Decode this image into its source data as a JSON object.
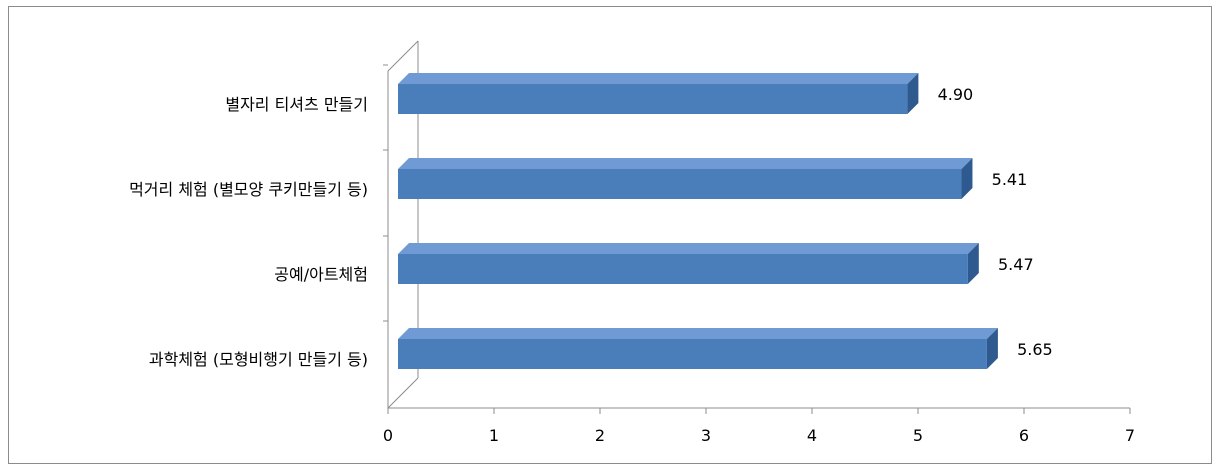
{
  "chart_data": {
    "type": "bar",
    "orientation": "horizontal",
    "style": "3d",
    "categories": [
      "별자리 티셔츠 만들기",
      "먹거리 체험 (별모양 쿠키만들기 등)",
      "공예/아트체험",
      "과학체험 (모형비행기 만들기 등)"
    ],
    "values": [
      4.9,
      5.41,
      5.47,
      5.65
    ],
    "value_labels": [
      "4.90",
      "5.41",
      "5.47",
      "5.65"
    ],
    "xlim": [
      0,
      7
    ],
    "x_ticks": [
      "0",
      "1",
      "2",
      "3",
      "4",
      "5",
      "6",
      "7"
    ],
    "grid": false,
    "legend": "none",
    "colors": {
      "bar_front": "#4a7ebb",
      "bar_top": "#6f9ad4",
      "bar_side": "#2f5a8f",
      "axis": "#8c8c8c"
    }
  }
}
